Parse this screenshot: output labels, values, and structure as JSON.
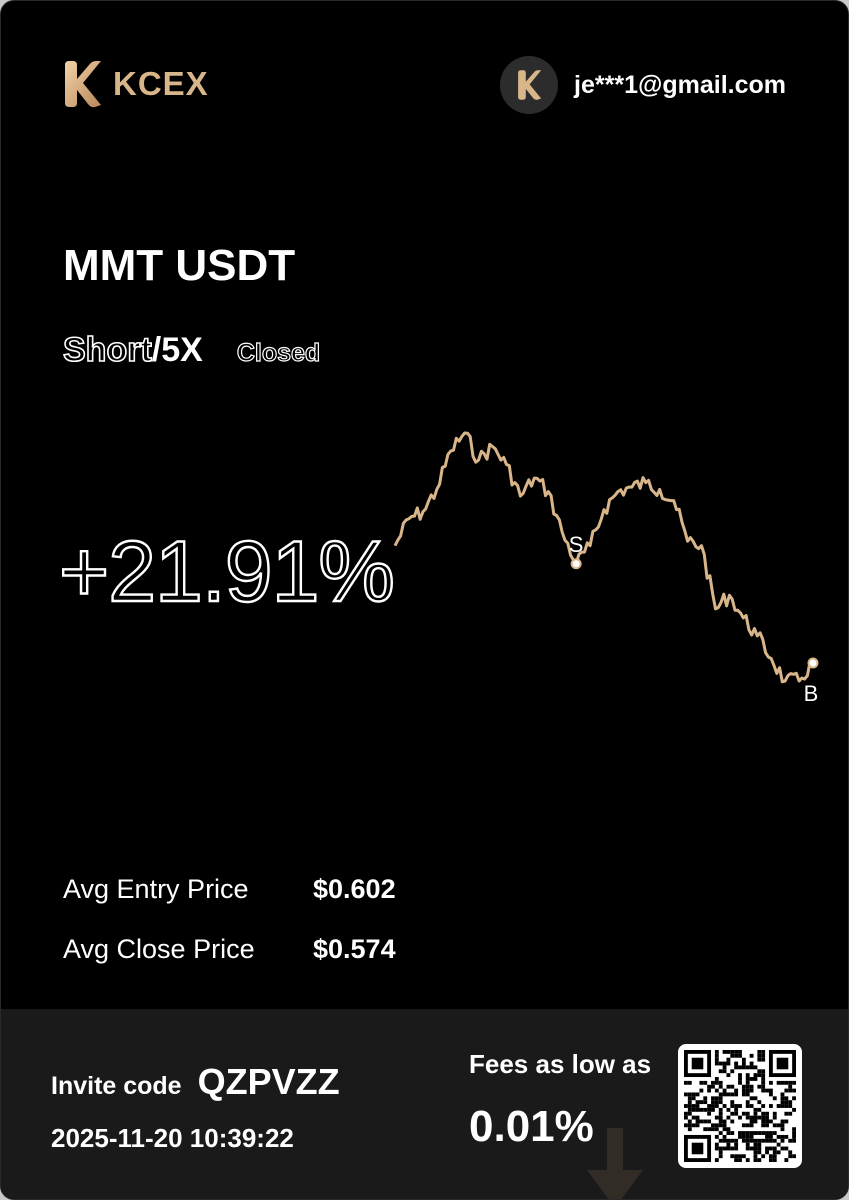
{
  "brand": {
    "name": "KCEX",
    "accent": "#d9b68a"
  },
  "user": {
    "email": "je***1@gmail.com"
  },
  "trade": {
    "pair": "MMT USDT",
    "side": "Short",
    "leverage": "/5X",
    "status": "Closed",
    "pnl": "+21.91%"
  },
  "chart_data": {
    "type": "line",
    "series": [
      {
        "values": [
          0.56,
          0.572,
          0.575,
          0.585,
          0.602,
          0.61,
          0.598,
          0.604,
          0.596,
          0.582,
          0.59,
          0.584,
          0.566,
          0.552,
          0.56,
          0.576,
          0.584,
          0.586,
          0.588,
          0.585,
          0.58,
          0.562,
          0.56,
          0.532,
          0.538,
          0.528,
          0.52,
          0.51,
          0.5,
          0.5,
          0.508
        ]
      }
    ],
    "markers": [
      {
        "label": "S",
        "index": 13
      },
      {
        "label": "B",
        "index": 30
      }
    ],
    "line_color": "#d9b68a"
  },
  "stats": {
    "entry_label": "Avg Entry Price",
    "entry_value": "$0.602",
    "close_label": "Avg Close Price",
    "close_value": "$0.574"
  },
  "footer": {
    "invite_label": "Invite code",
    "invite_code": "QZPVZZ",
    "timestamp": "2025-11-20 10:39:22",
    "fees_label": "Fees as low as",
    "fees_value": "0.01%"
  },
  "icons": {
    "logo": "kcex-logo-icon",
    "avatar": "kcex-avatar-icon",
    "qr": "qr-code-icon",
    "arrow": "down-arrow-icon"
  }
}
